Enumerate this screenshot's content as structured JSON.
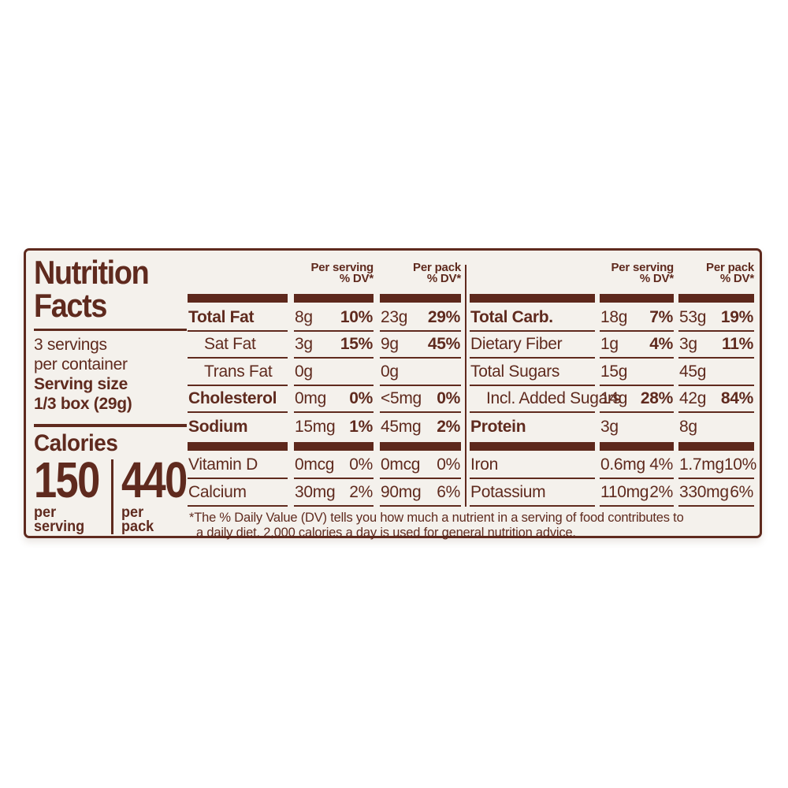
{
  "colors": {
    "brown": "#5f2a1e",
    "bar": "#5d281c",
    "label-bg": "#f4f1ec",
    "page-bg": "#ffffff"
  },
  "label": {
    "title_line1": "Nutrition",
    "title_line2": "Facts",
    "servings_line1": "3 servings",
    "servings_line2": "per container",
    "serving_size_label": "Serving size",
    "serving_size_value": "1/3 box (29g)",
    "calories": {
      "label": "Calories",
      "per_serving_value": "150",
      "per_serving_unit_line1": "per",
      "per_serving_unit_line2": "serving",
      "per_pack_value": "440",
      "per_pack_unit_line1": "per",
      "per_pack_unit_line2": "pack"
    },
    "headers": {
      "per_serving": "Per serving",
      "per_pack": "Per pack",
      "dv": "% DV*"
    },
    "left_table": {
      "rows": [
        {
          "name": "Total Fat",
          "serving_amount": "8g",
          "serving_dv": "10%",
          "pack_amount": "23g",
          "pack_dv": "29%"
        },
        {
          "name": "Sat Fat",
          "serving_amount": "3g",
          "serving_dv": "15%",
          "pack_amount": "9g",
          "pack_dv": "45%"
        },
        {
          "name": "Trans Fat",
          "serving_amount": "0g",
          "serving_dv": "",
          "pack_amount": "0g",
          "pack_dv": ""
        },
        {
          "name": "Cholesterol",
          "serving_amount": "0mg",
          "serving_dv": "0%",
          "pack_amount": "<5mg",
          "pack_dv": "0%"
        },
        {
          "name": "Sodium",
          "serving_amount": "15mg",
          "serving_dv": "1%",
          "pack_amount": "45mg",
          "pack_dv": "2%"
        },
        {
          "name": "Vitamin D",
          "serving_amount": "0mcg",
          "serving_dv": "0%",
          "pack_amount": "0mcg",
          "pack_dv": "0%"
        },
        {
          "name": "Calcium",
          "serving_amount": "30mg",
          "serving_dv": "2%",
          "pack_amount": "90mg",
          "pack_dv": "6%"
        }
      ]
    },
    "right_table": {
      "rows": [
        {
          "name": "Total Carb.",
          "serving_amount": "18g",
          "serving_dv": "7%",
          "pack_amount": "53g",
          "pack_dv": "19%"
        },
        {
          "name": "Dietary Fiber",
          "serving_amount": "1g",
          "serving_dv": "4%",
          "pack_amount": "3g",
          "pack_dv": "11%"
        },
        {
          "name": "Total Sugars",
          "serving_amount": "15g",
          "serving_dv": "",
          "pack_amount": "45g",
          "pack_dv": ""
        },
        {
          "name": "Incl. Added Sugars",
          "serving_amount": "14g",
          "serving_dv": "28%",
          "pack_amount": "42g",
          "pack_dv": "84%"
        },
        {
          "name": "Protein",
          "serving_amount": "3g",
          "serving_dv": "",
          "pack_amount": "8g",
          "pack_dv": ""
        },
        {
          "name": "Iron",
          "serving_amount": "0.6mg",
          "serving_dv": "4%",
          "pack_amount": "1.7mg",
          "pack_dv": "10%"
        },
        {
          "name": "Potassium",
          "serving_amount": "110mg",
          "serving_dv": "2%",
          "pack_amount": "330mg",
          "pack_dv": "6%"
        }
      ]
    },
    "footnote_line1": "*The % Daily Value (DV) tells you how much a nutrient in a serving of food contributes to",
    "footnote_line2": "a daily diet. 2,000 calories a day is used for general nutrition advice."
  }
}
